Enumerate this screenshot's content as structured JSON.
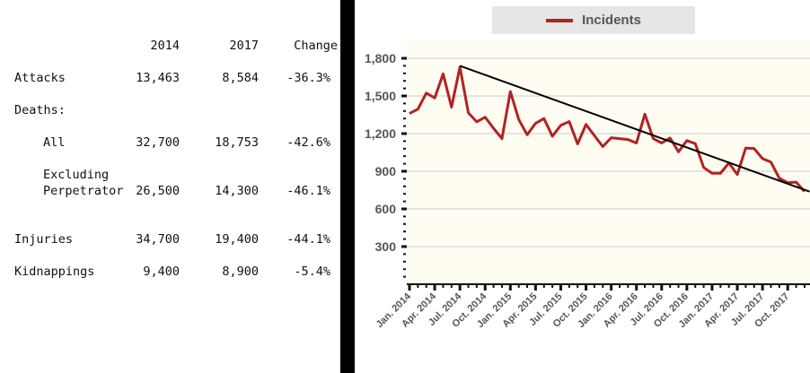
{
  "table": {
    "headers": [
      "",
      "2014",
      "2017",
      "Change"
    ],
    "rows": [
      {
        "label": "Attacks",
        "y2014": "13,463",
        "y2017": "8,584",
        "change": "-36.3%"
      },
      {
        "label": "Deaths:",
        "y2014": "",
        "y2017": "",
        "change": ""
      },
      {
        "label": "All",
        "y2014": "32,700",
        "y2017": "18,753",
        "change": "-42.6%"
      },
      {
        "label": "Excluding",
        "label2": "Perpetrator",
        "y2014": "26,500",
        "y2017": "14,300",
        "change": "-46.1%"
      },
      {
        "label": "Injuries",
        "y2014": "34,700",
        "y2017": "19,400",
        "change": "-44.1%"
      },
      {
        "label": "Kidnappings",
        "y2014": "9,400",
        "y2017": "8,900",
        "change": "-5.4%"
      }
    ]
  },
  "chart_data": {
    "type": "line",
    "title": "",
    "legend": {
      "entries": [
        "Incidents"
      ],
      "placement": "top-center"
    },
    "colors": {
      "series": "#b22222",
      "trend": "#000000",
      "plot_bg": "#fffdf2",
      "grid": "#cccccc"
    },
    "ylim": [
      0,
      1800
    ],
    "yticks": [
      300,
      600,
      900,
      1200,
      1500,
      1800
    ],
    "ytick_labels": [
      "300",
      "600",
      "900",
      "1,200",
      "1,500",
      "1,800"
    ],
    "xtick_labels": [
      "Jan. 2014",
      "Apr. 2014",
      "Jul. 2014",
      "Oct. 2014",
      "Jan. 2015",
      "Apr. 2015",
      "Jul. 2015",
      "Oct. 2015",
      "Jan. 2016",
      "Apr. 2016",
      "Jul. 2016",
      "Oct. 2016",
      "Jan. 2017",
      "Apr. 2017",
      "Jul. 2017",
      "Oct. 2017"
    ],
    "x_start": "Jan. 2014",
    "x_unit": "month",
    "series": [
      {
        "name": "Incidents",
        "values": [
          1360,
          1395,
          1523,
          1484,
          1676,
          1411,
          1730,
          1366,
          1294,
          1331,
          1242,
          1160,
          1535,
          1312,
          1191,
          1282,
          1320,
          1179,
          1266,
          1296,
          1118,
          1273,
          1184,
          1097,
          1167,
          1160,
          1153,
          1125,
          1355,
          1160,
          1125,
          1165,
          1055,
          1144,
          1120,
          930,
          884,
          884,
          966,
          874,
          1085,
          1081,
          1001,
          973,
          844,
          809,
          813,
          738
        ]
      }
    ],
    "trendline": {
      "from": {
        "month_index": 6,
        "value": 1740
      },
      "to": {
        "month_index": 47.6,
        "value": 738
      }
    }
  }
}
